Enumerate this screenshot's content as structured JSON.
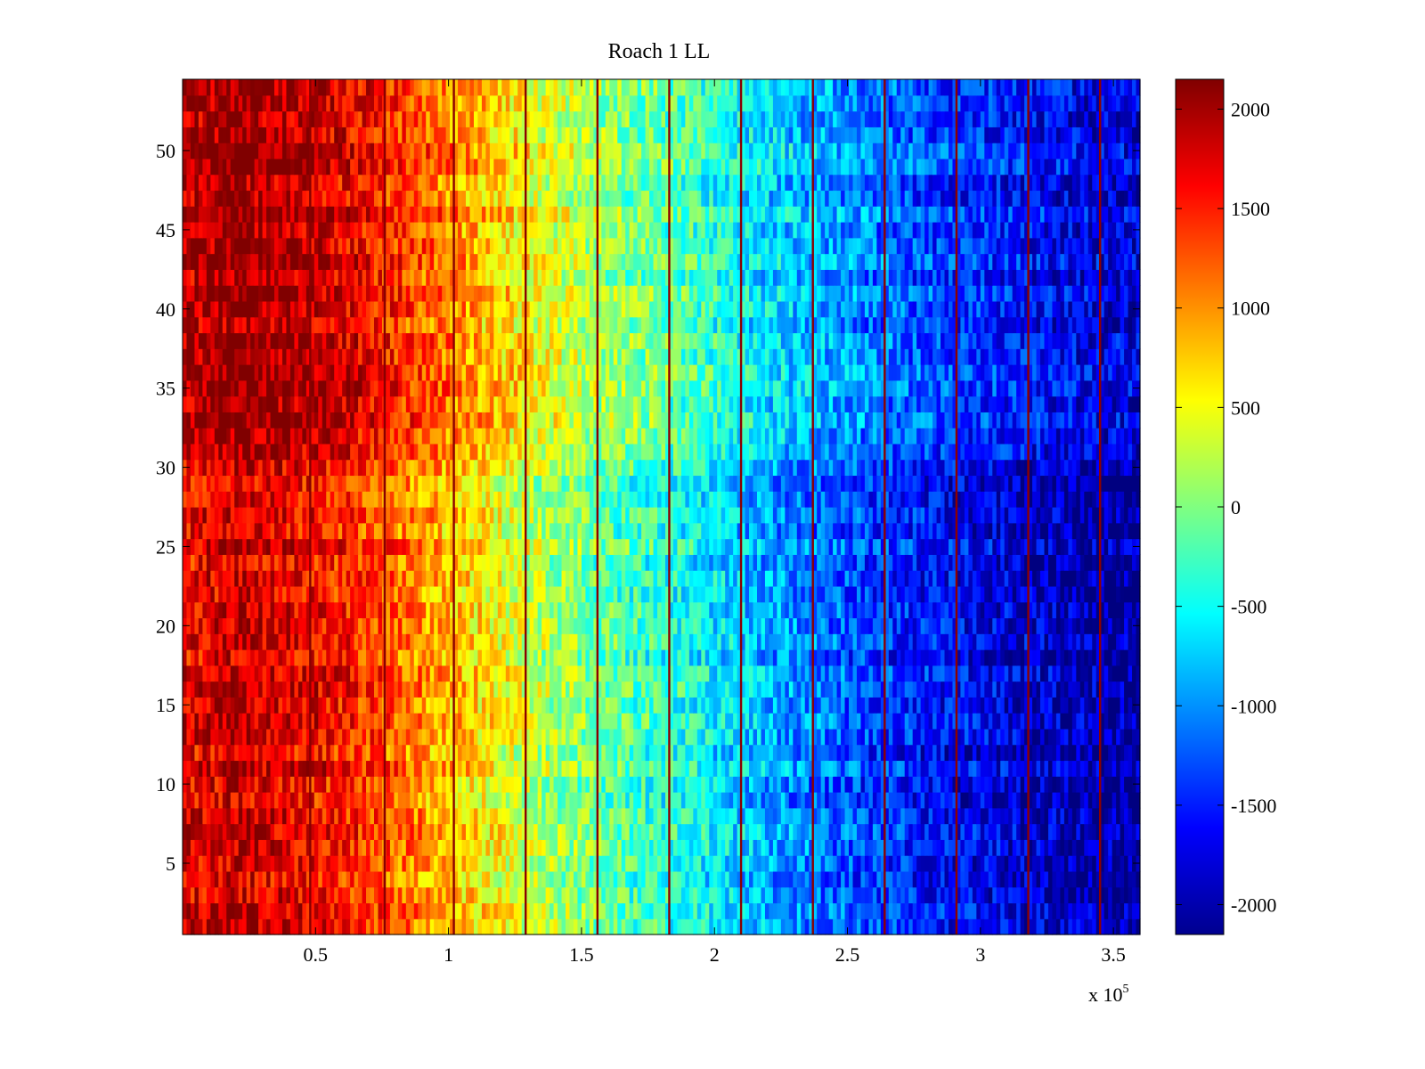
{
  "chart_data": {
    "type": "heatmap",
    "title": "Roach 1 LL",
    "xlabel": "",
    "ylabel": "",
    "x_range": [
      0,
      360000
    ],
    "y_range": [
      0.5,
      54.5
    ],
    "x_ticks": [
      50000,
      100000,
      150000,
      200000,
      250000,
      300000,
      350000
    ],
    "x_tick_labels": [
      "0.5",
      "1",
      "1.5",
      "2",
      "2.5",
      "3",
      "3.5"
    ],
    "x_exponent_label": {
      "base": "x 10",
      "exponent": "5"
    },
    "y_ticks": [
      5,
      10,
      15,
      20,
      25,
      30,
      35,
      40,
      45,
      50
    ],
    "y_tick_labels": [
      "5",
      "10",
      "15",
      "20",
      "25",
      "30",
      "35",
      "40",
      "45",
      "50"
    ],
    "rows": 54,
    "colormap": "jet",
    "colorbar": {
      "range": [
        -2150,
        2150
      ],
      "ticks": [
        2000,
        1500,
        1000,
        500,
        0,
        -500,
        -1000,
        -1500,
        -2000
      ],
      "tick_labels": [
        "2000",
        "1500",
        "1000",
        "500",
        "0",
        "-500",
        "-1000",
        "-1500",
        "-2000"
      ],
      "placement": "right"
    },
    "trend": {
      "x": [
        0,
        20000,
        50000,
        75000,
        100000,
        130000,
        160000,
        190000,
        220000,
        250000,
        280000,
        310000,
        340000,
        360000
      ],
      "value": [
        1650,
        1850,
        1650,
        1300,
        850,
        300,
        -150,
        -450,
        -900,
        -1250,
        -1550,
        -1750,
        -1950,
        -2050
      ]
    },
    "row_band_offset": [
      {
        "y_from": 30.5,
        "y_to": 54.5,
        "offset": 250
      }
    ],
    "stripe_lines": {
      "x": [
        48000,
        76000,
        102000,
        129000,
        156000,
        183000,
        210000,
        237000,
        264000,
        291000,
        318000,
        345000
      ],
      "value": 2100
    }
  }
}
